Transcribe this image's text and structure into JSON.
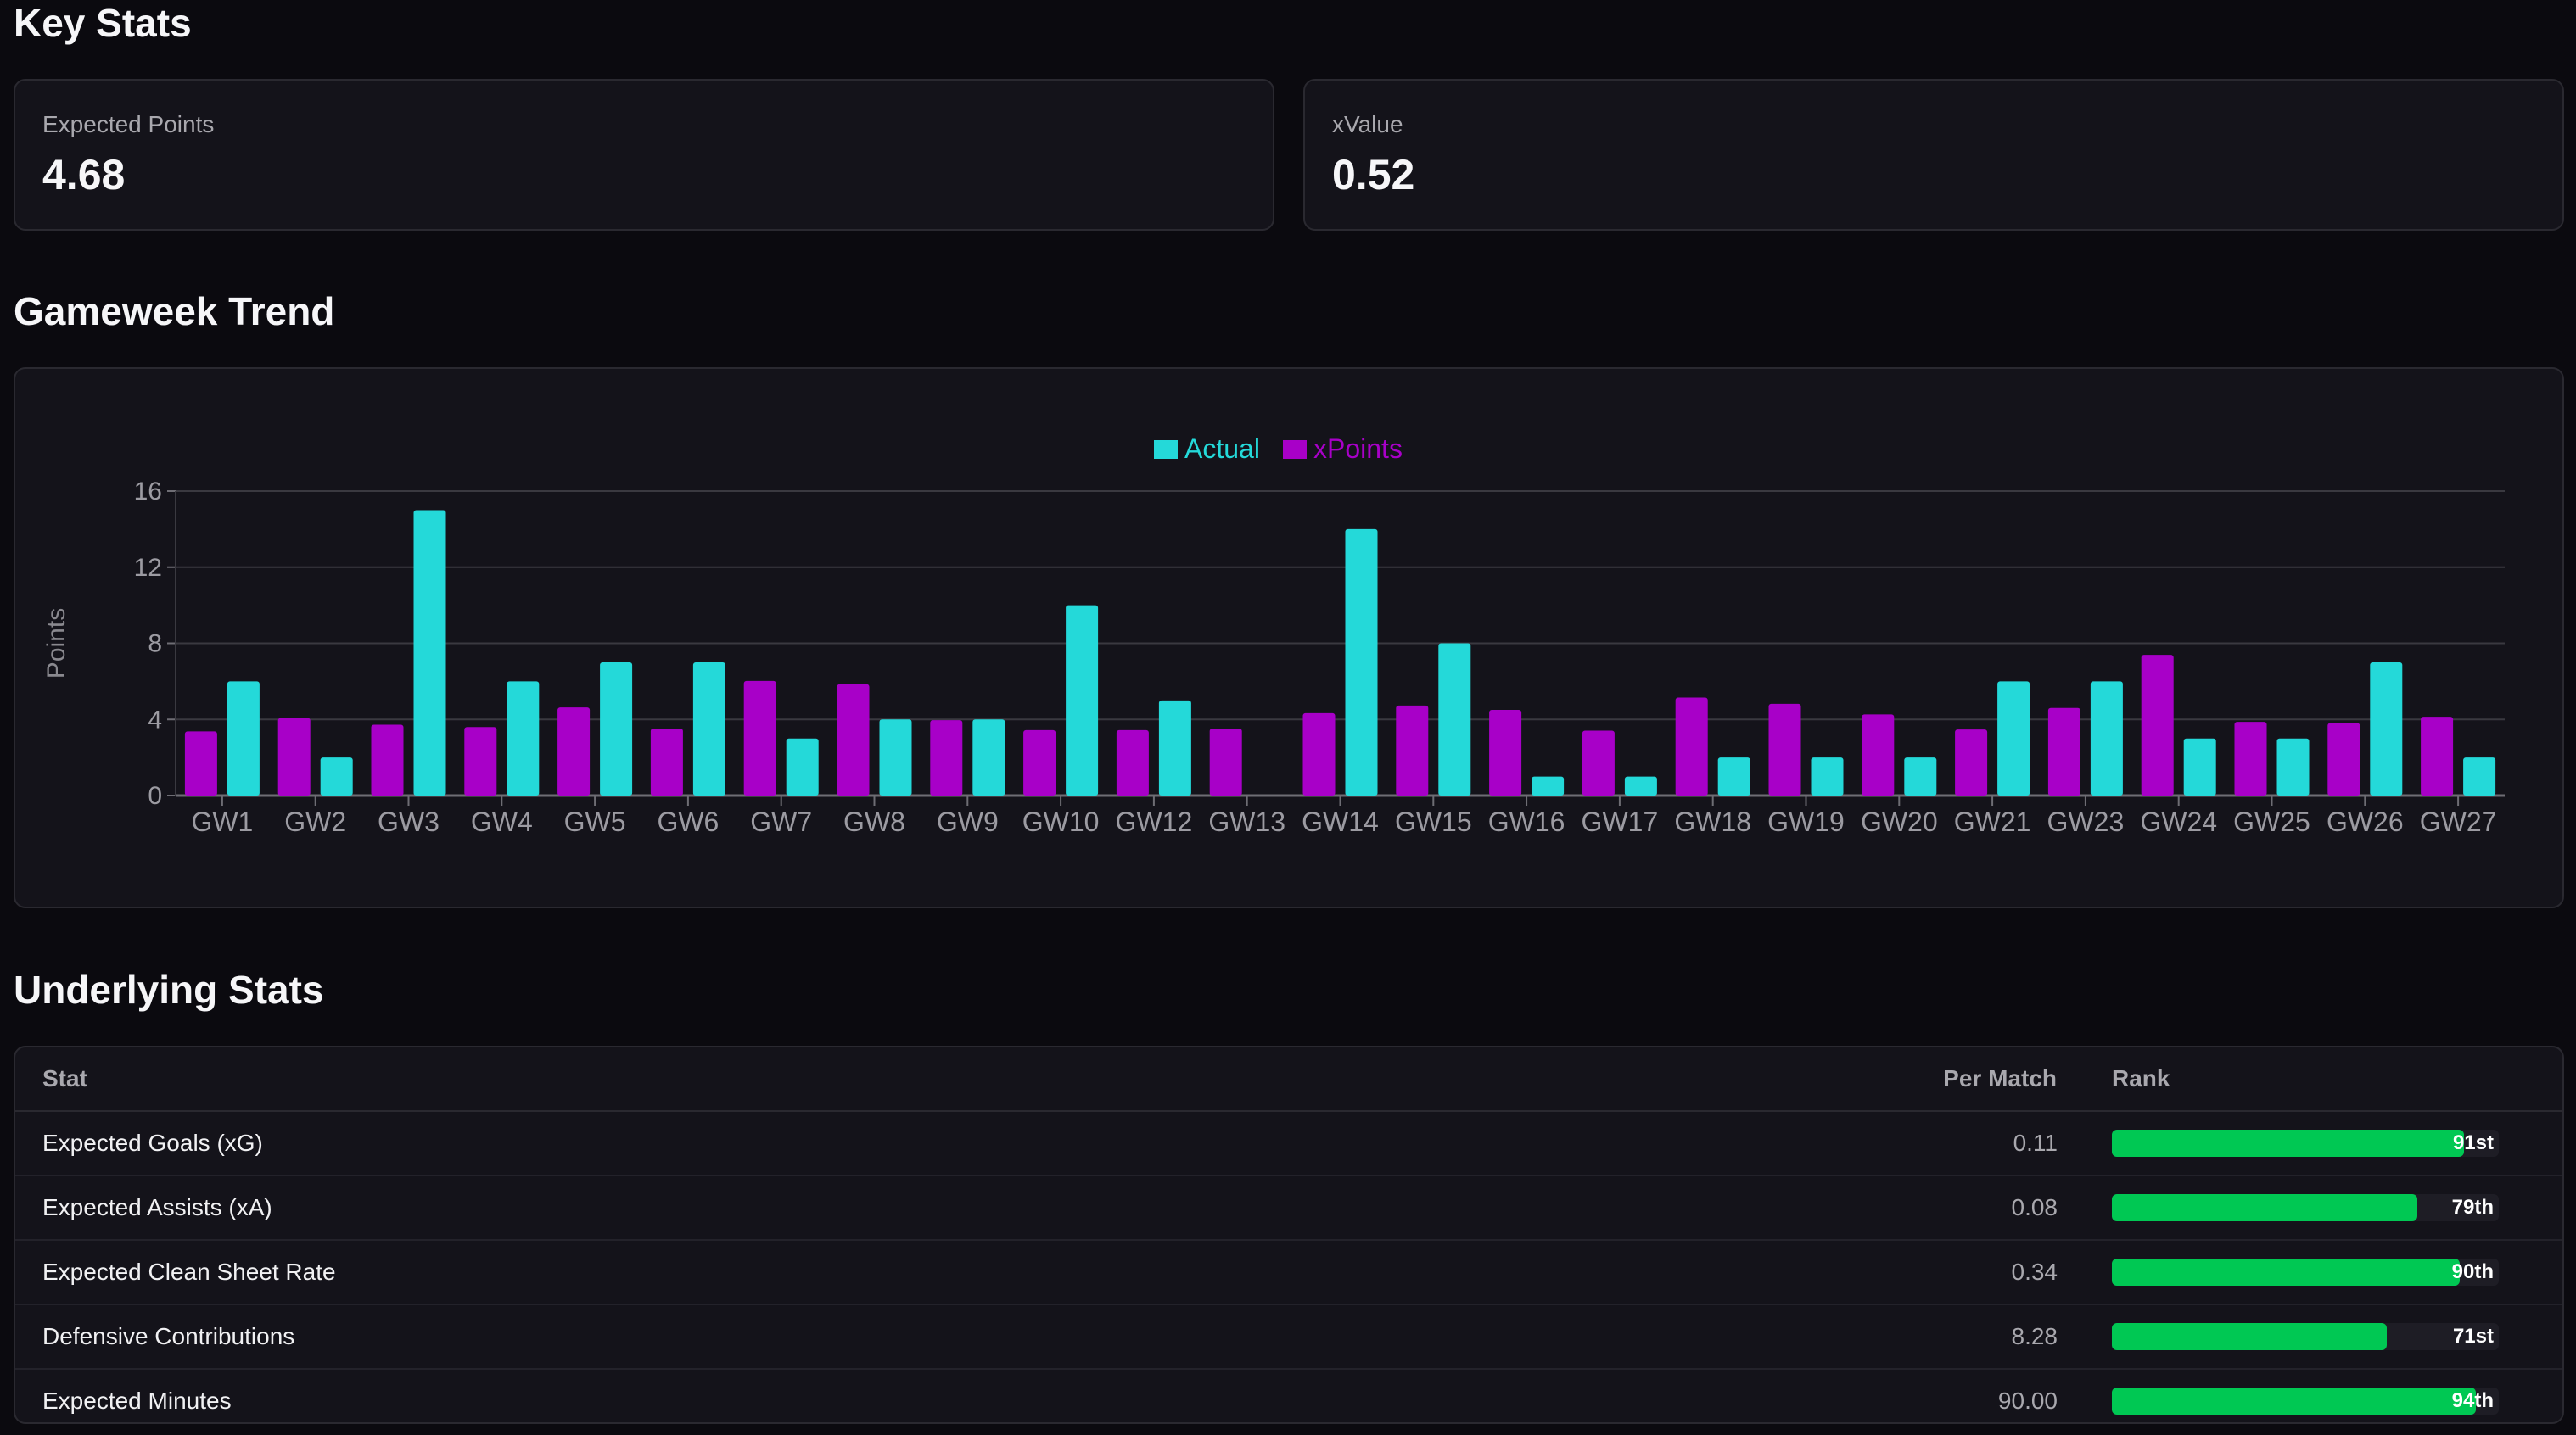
{
  "key_stats": {
    "title": "Key Stats",
    "cards": [
      {
        "label": "Expected Points",
        "value": "4.68"
      },
      {
        "label": "xValue",
        "value": "0.52"
      }
    ]
  },
  "trend": {
    "title": "Gameweek Trend"
  },
  "chart_data": {
    "type": "bar",
    "title": "",
    "xlabel": "",
    "ylabel": "Points",
    "ylim": [
      0,
      16
    ],
    "yticks": [
      0,
      4,
      8,
      12,
      16
    ],
    "grid": true,
    "legend_position": "top-center",
    "categories": [
      "GW1",
      "GW2",
      "GW3",
      "GW4",
      "GW5",
      "GW6",
      "GW7",
      "GW8",
      "GW9",
      "GW10",
      "GW12",
      "GW13",
      "GW14",
      "GW15",
      "GW16",
      "GW17",
      "GW18",
      "GW19",
      "GW20",
      "GW21",
      "GW23",
      "GW24",
      "GW25",
      "GW26",
      "GW27"
    ],
    "series": [
      {
        "name": "xPoints",
        "color": "#a800c8",
        "values": [
          3.37,
          4.08,
          3.72,
          3.6,
          4.63,
          3.52,
          6.02,
          5.85,
          3.96,
          3.44,
          3.44,
          3.52,
          4.33,
          4.73,
          4.5,
          3.41,
          5.15,
          4.82,
          4.26,
          3.47,
          4.6,
          7.39,
          3.87,
          3.81,
          4.14
        ]
      },
      {
        "name": "Actual",
        "color": "#24d9d9",
        "values": [
          6,
          2,
          15,
          6,
          7,
          7,
          3,
          4,
          4,
          10,
          5,
          0,
          14,
          8,
          1,
          1,
          2,
          2,
          2,
          6,
          6,
          3,
          3,
          7,
          2
        ]
      }
    ],
    "legend_order": [
      "Actual",
      "xPoints"
    ]
  },
  "underlying": {
    "title": "Underlying Stats",
    "columns": [
      "Stat",
      "Per Match",
      "Rank"
    ],
    "rows": [
      {
        "stat": "Expected Goals (xG)",
        "per_match": "0.11",
        "rank": "91st",
        "pct": 91
      },
      {
        "stat": "Expected Assists (xA)",
        "per_match": "0.08",
        "rank": "79th",
        "pct": 79
      },
      {
        "stat": "Expected Clean Sheet Rate",
        "per_match": "0.34",
        "rank": "90th",
        "pct": 90
      },
      {
        "stat": "Defensive Contributions",
        "per_match": "8.28",
        "rank": "71st",
        "pct": 71
      },
      {
        "stat": "Expected Minutes",
        "per_match": "90.00",
        "rank": "94th",
        "pct": 94
      }
    ],
    "bar_color": "#00c853"
  }
}
